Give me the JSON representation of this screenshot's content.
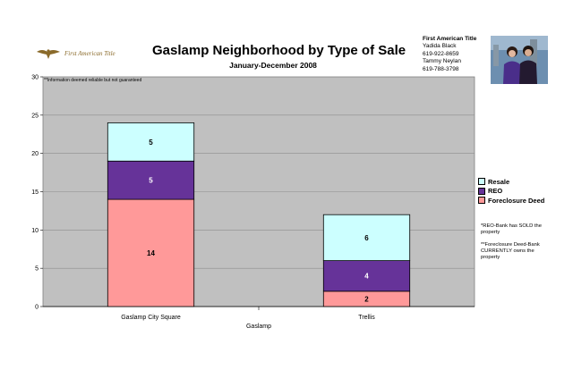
{
  "header": {
    "logo_text": "First American Title",
    "title": "Gaslamp Neighborhood by Type of Sale",
    "subtitle": "January-December 2008"
  },
  "contact": {
    "company": "First American Title",
    "lines": [
      "Yadida Black",
      "619-922-8659",
      "Tammy Neylan",
      "619-788-3798"
    ]
  },
  "notes": {
    "disclaimer": "**Information deemed reliable but not guaranteed",
    "reo": "*REO-Bank has SOLD the property",
    "foreclosure": "**Foreclosure Deed-Bank CURRENTLY owns the property"
  },
  "colors": {
    "plot_bg": "#c0c0c0",
    "resale": "#ccffff",
    "reo": "#663399",
    "foreclosure": "#ff9999",
    "reo_label": "#ffffff",
    "logo_gold": "#8a6a2a"
  },
  "chart_data": {
    "type": "bar",
    "stacked": true,
    "categories": [
      "Gaslamp City Square",
      "Trellis"
    ],
    "series": [
      {
        "name": "Foreclosure Deed",
        "values": [
          14,
          2
        ]
      },
      {
        "name": "REO",
        "values": [
          5,
          4
        ]
      },
      {
        "name": "Resale",
        "values": [
          5,
          6
        ]
      }
    ],
    "legend_order": [
      "Resale",
      "REO",
      "Foreclosure Deed"
    ],
    "xlabel": "Gaslamp",
    "ylabel": "",
    "ylim": [
      0,
      30
    ],
    "yticks": [
      0,
      5,
      10,
      15,
      20,
      25,
      30
    ],
    "grid": true,
    "legend_position": "right"
  }
}
